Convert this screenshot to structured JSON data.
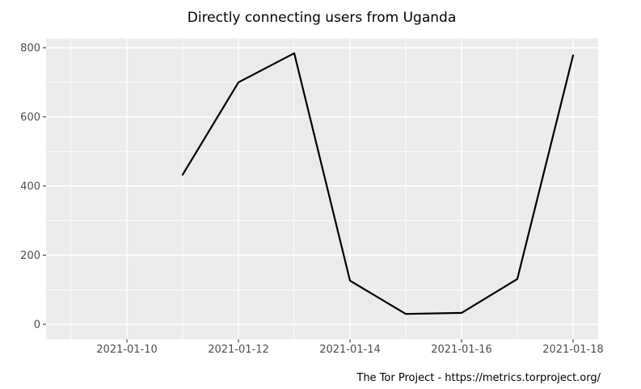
{
  "title": "Directly connecting users from Uganda",
  "footer": "The Tor Project - https://metrics.torproject.org/",
  "colors": {
    "figure_background": "#ffffff",
    "panel_background": "#ebebeb",
    "grid_major": "#ffffff",
    "grid_minor": "#ffffff",
    "axis_tick": "#333333",
    "axis_text": "#4d4d4d",
    "line": "#000000",
    "title_text": "#000000",
    "footer_text": "#000000"
  },
  "chart_data": {
    "type": "line",
    "title": "Directly connecting users from Uganda",
    "xlabel": "",
    "ylabel": "",
    "x": [
      "2021-01-11",
      "2021-01-12",
      "2021-01-13",
      "2021-01-14",
      "2021-01-15",
      "2021-01-16",
      "2021-01-17",
      "2021-01-18"
    ],
    "values": [
      433,
      700,
      784,
      126,
      30,
      33,
      131,
      778
    ],
    "series_name": "directly-connecting-users",
    "x_tick_labels": [
      "2021-01-10",
      "2021-01-12",
      "2021-01-14",
      "2021-01-16",
      "2021-01-18"
    ],
    "x_major_days": [
      10,
      12,
      14,
      16,
      18
    ],
    "x_minor_days": [
      9,
      11,
      13,
      15,
      17
    ],
    "y_major_ticks": [
      0,
      200,
      400,
      600,
      800
    ],
    "y_major_tick_labels": [
      "0",
      "200",
      "400",
      "600",
      "800"
    ],
    "y_minor_ticks": [
      100,
      300,
      500,
      700
    ],
    "ylim": [
      0,
      800
    ],
    "grid": "major and minor white gridlines on gray panel",
    "legend": "none",
    "annotation": "The Tor Project - https://metrics.torproject.org/"
  }
}
